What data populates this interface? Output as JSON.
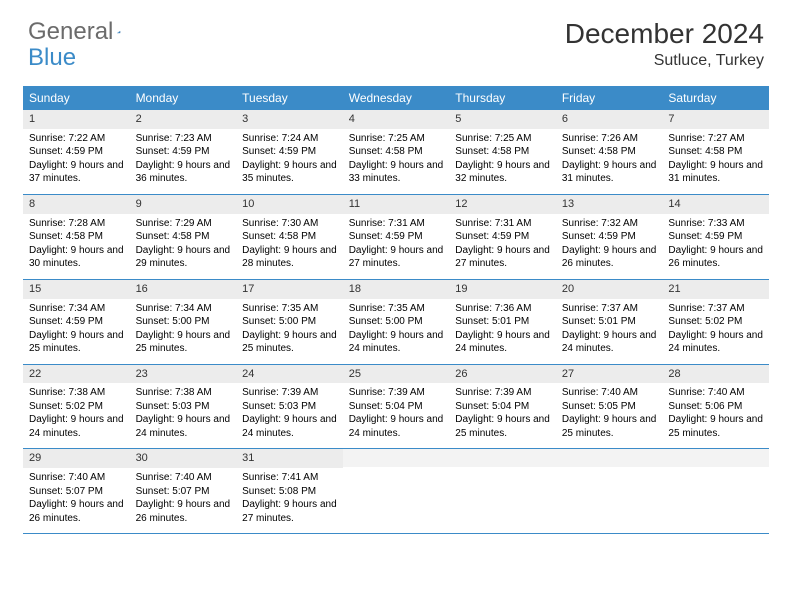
{
  "logo": {
    "text1": "General",
    "text2": "Blue"
  },
  "title": "December 2024",
  "location": "Sutluce, Turkey",
  "colors": {
    "header_bg": "#3b8bc8",
    "header_fg": "#ffffff",
    "date_bg": "#ececec",
    "week_border": "#3b8bc8"
  },
  "day_names": [
    "Sunday",
    "Monday",
    "Tuesday",
    "Wednesday",
    "Thursday",
    "Friday",
    "Saturday"
  ],
  "weeks": [
    [
      {
        "n": "1",
        "sr": "7:22 AM",
        "ss": "4:59 PM",
        "dl": "9 hours and 37 minutes."
      },
      {
        "n": "2",
        "sr": "7:23 AM",
        "ss": "4:59 PM",
        "dl": "9 hours and 36 minutes."
      },
      {
        "n": "3",
        "sr": "7:24 AM",
        "ss": "4:59 PM",
        "dl": "9 hours and 35 minutes."
      },
      {
        "n": "4",
        "sr": "7:25 AM",
        "ss": "4:58 PM",
        "dl": "9 hours and 33 minutes."
      },
      {
        "n": "5",
        "sr": "7:25 AM",
        "ss": "4:58 PM",
        "dl": "9 hours and 32 minutes."
      },
      {
        "n": "6",
        "sr": "7:26 AM",
        "ss": "4:58 PM",
        "dl": "9 hours and 31 minutes."
      },
      {
        "n": "7",
        "sr": "7:27 AM",
        "ss": "4:58 PM",
        "dl": "9 hours and 31 minutes."
      }
    ],
    [
      {
        "n": "8",
        "sr": "7:28 AM",
        "ss": "4:58 PM",
        "dl": "9 hours and 30 minutes."
      },
      {
        "n": "9",
        "sr": "7:29 AM",
        "ss": "4:58 PM",
        "dl": "9 hours and 29 minutes."
      },
      {
        "n": "10",
        "sr": "7:30 AM",
        "ss": "4:58 PM",
        "dl": "9 hours and 28 minutes."
      },
      {
        "n": "11",
        "sr": "7:31 AM",
        "ss": "4:59 PM",
        "dl": "9 hours and 27 minutes."
      },
      {
        "n": "12",
        "sr": "7:31 AM",
        "ss": "4:59 PM",
        "dl": "9 hours and 27 minutes."
      },
      {
        "n": "13",
        "sr": "7:32 AM",
        "ss": "4:59 PM",
        "dl": "9 hours and 26 minutes."
      },
      {
        "n": "14",
        "sr": "7:33 AM",
        "ss": "4:59 PM",
        "dl": "9 hours and 26 minutes."
      }
    ],
    [
      {
        "n": "15",
        "sr": "7:34 AM",
        "ss": "4:59 PM",
        "dl": "9 hours and 25 minutes."
      },
      {
        "n": "16",
        "sr": "7:34 AM",
        "ss": "5:00 PM",
        "dl": "9 hours and 25 minutes."
      },
      {
        "n": "17",
        "sr": "7:35 AM",
        "ss": "5:00 PM",
        "dl": "9 hours and 25 minutes."
      },
      {
        "n": "18",
        "sr": "7:35 AM",
        "ss": "5:00 PM",
        "dl": "9 hours and 24 minutes."
      },
      {
        "n": "19",
        "sr": "7:36 AM",
        "ss": "5:01 PM",
        "dl": "9 hours and 24 minutes."
      },
      {
        "n": "20",
        "sr": "7:37 AM",
        "ss": "5:01 PM",
        "dl": "9 hours and 24 minutes."
      },
      {
        "n": "21",
        "sr": "7:37 AM",
        "ss": "5:02 PM",
        "dl": "9 hours and 24 minutes."
      }
    ],
    [
      {
        "n": "22",
        "sr": "7:38 AM",
        "ss": "5:02 PM",
        "dl": "9 hours and 24 minutes."
      },
      {
        "n": "23",
        "sr": "7:38 AM",
        "ss": "5:03 PM",
        "dl": "9 hours and 24 minutes."
      },
      {
        "n": "24",
        "sr": "7:39 AM",
        "ss": "5:03 PM",
        "dl": "9 hours and 24 minutes."
      },
      {
        "n": "25",
        "sr": "7:39 AM",
        "ss": "5:04 PM",
        "dl": "9 hours and 24 minutes."
      },
      {
        "n": "26",
        "sr": "7:39 AM",
        "ss": "5:04 PM",
        "dl": "9 hours and 25 minutes."
      },
      {
        "n": "27",
        "sr": "7:40 AM",
        "ss": "5:05 PM",
        "dl": "9 hours and 25 minutes."
      },
      {
        "n": "28",
        "sr": "7:40 AM",
        "ss": "5:06 PM",
        "dl": "9 hours and 25 minutes."
      }
    ],
    [
      {
        "n": "29",
        "sr": "7:40 AM",
        "ss": "5:07 PM",
        "dl": "9 hours and 26 minutes."
      },
      {
        "n": "30",
        "sr": "7:40 AM",
        "ss": "5:07 PM",
        "dl": "9 hours and 26 minutes."
      },
      {
        "n": "31",
        "sr": "7:41 AM",
        "ss": "5:08 PM",
        "dl": "9 hours and 27 minutes."
      },
      null,
      null,
      null,
      null
    ]
  ],
  "labels": {
    "sunrise": "Sunrise:",
    "sunset": "Sunset:",
    "daylight": "Daylight:"
  }
}
